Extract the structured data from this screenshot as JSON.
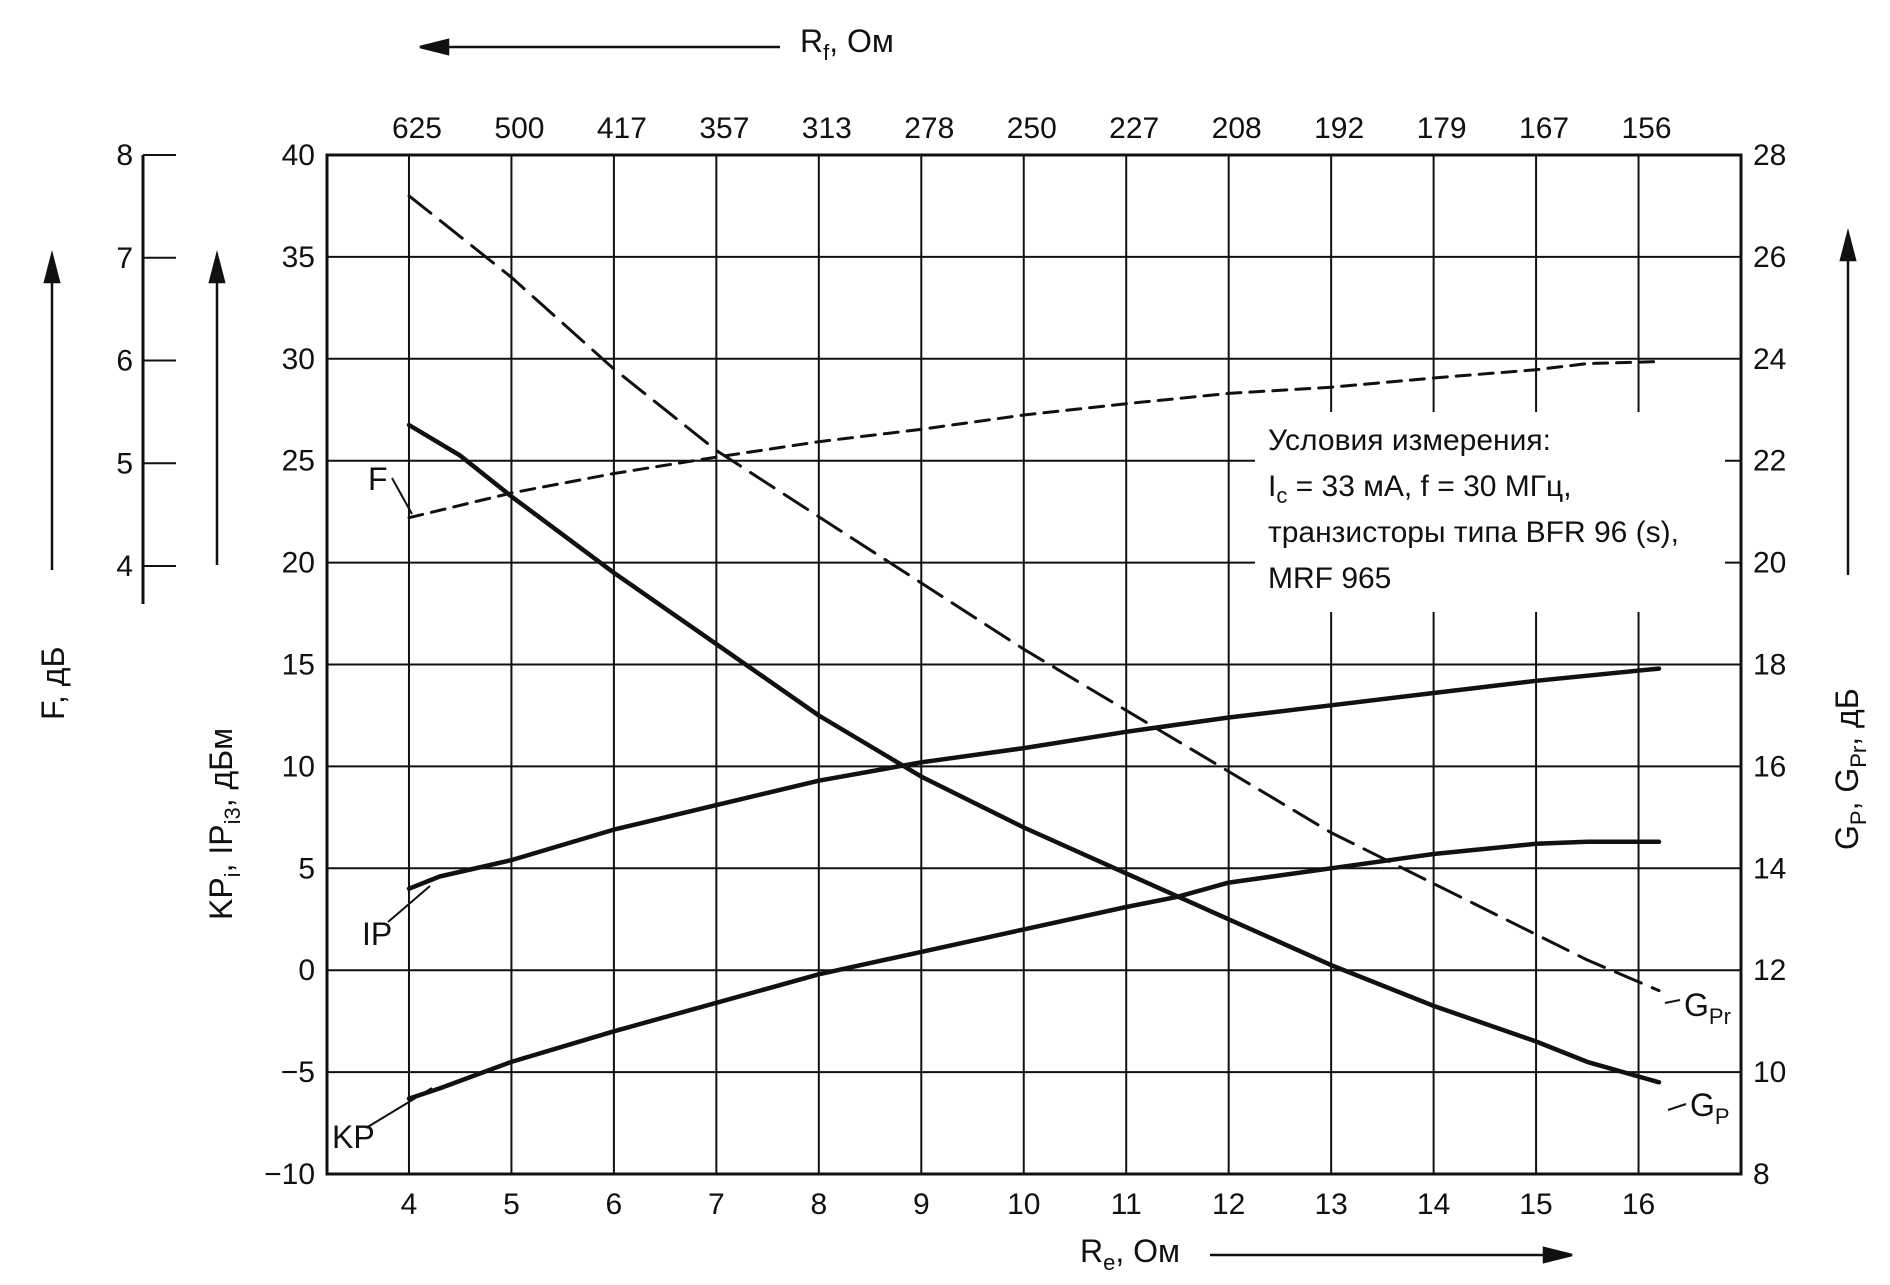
{
  "chart_data": {
    "type": "line",
    "x_axis": {
      "label": "R",
      "label_sub": "e",
      "label_unit": ", Ом",
      "range": [
        3.2,
        17.0
      ],
      "ticks": [
        4,
        5,
        6,
        7,
        8,
        9,
        10,
        11,
        12,
        13,
        14,
        15,
        16
      ]
    },
    "top_axis": {
      "label": "R",
      "label_sub": "f",
      "label_unit": ", Ом",
      "tick_labels": [
        "625",
        "500",
        "417",
        "357",
        "313",
        "278",
        "250",
        "227",
        "208",
        "192",
        "179",
        "167",
        "156"
      ]
    },
    "left_axis_inner": {
      "label": "KP",
      "label_sub1": "i",
      "label_mid": ", IP",
      "label_sub2": "i3",
      "label_unit": ", дБм",
      "range": [
        -10,
        40
      ],
      "ticks": [
        -10,
        -5,
        0,
        5,
        10,
        15,
        20,
        25,
        30,
        35,
        40
      ]
    },
    "left_axis_outer": {
      "label": "F, дБ",
      "range": [
        4,
        8
      ],
      "ticks": [
        4,
        5,
        6,
        7,
        8
      ]
    },
    "right_axis": {
      "label": "G",
      "label_sub1": "P",
      "label_mid": ", G",
      "label_sub2": "Pr",
      "label_unit": ", дБ",
      "range": [
        8,
        28
      ],
      "ticks": [
        8,
        10,
        12,
        14,
        16,
        18,
        20,
        22,
        24,
        26,
        28
      ]
    },
    "grid": true,
    "series": [
      {
        "name": "F",
        "label_sub": "",
        "axis": "F",
        "style": "dashed-short",
        "x": [
          4.0,
          5.0,
          6.0,
          7.0,
          8.0,
          9.0,
          10.0,
          11.0,
          12.0,
          13.0,
          14.0,
          15.0,
          15.5,
          16.2
        ],
        "y": [
          4.47,
          4.71,
          4.9,
          5.06,
          5.21,
          5.33,
          5.47,
          5.58,
          5.68,
          5.74,
          5.83,
          5.91,
          5.97,
          5.99
        ]
      },
      {
        "name": "IP",
        "label_sub": "",
        "axis": "left",
        "style": "solid",
        "x": [
          4.0,
          4.3,
          5.0,
          6.0,
          7.0,
          8.0,
          9.0,
          10.0,
          11.0,
          12.0,
          13.0,
          14.0,
          15.0,
          16.2
        ],
        "y": [
          4.0,
          4.6,
          5.4,
          6.9,
          8.1,
          9.3,
          10.2,
          10.9,
          11.7,
          12.4,
          13.0,
          13.6,
          14.2,
          14.8
        ]
      },
      {
        "name": "KP",
        "label_sub": "",
        "axis": "left",
        "style": "solid",
        "x": [
          4.0,
          4.3,
          5.0,
          6.0,
          7.0,
          8.0,
          9.0,
          10.0,
          11.0,
          11.5,
          12.0,
          13.0,
          14.0,
          15.0,
          15.5,
          16.2
        ],
        "y": [
          -6.3,
          -5.8,
          -4.5,
          -3.0,
          -1.6,
          -0.2,
          0.9,
          2.0,
          3.1,
          3.6,
          4.3,
          5.0,
          5.7,
          6.2,
          6.3,
          6.3
        ]
      },
      {
        "name": "G",
        "label_sub": "P",
        "axis": "right",
        "style": "solid",
        "x": [
          4.0,
          4.5,
          5.0,
          6.0,
          7.0,
          8.0,
          9.0,
          10.0,
          11.0,
          12.0,
          13.0,
          14.0,
          15.0,
          15.5,
          16.2
        ],
        "y": [
          22.7,
          22.1,
          21.3,
          19.8,
          18.4,
          17.0,
          15.8,
          14.8,
          13.9,
          13.0,
          12.1,
          11.3,
          10.6,
          10.2,
          9.8
        ]
      },
      {
        "name": "G",
        "label_sub": "Pr",
        "axis": "right",
        "style": "dashed-long",
        "x": [
          4.0,
          5.0,
          6.0,
          7.0,
          8.0,
          9.0,
          10.0,
          11.0,
          12.0,
          13.0,
          14.0,
          15.0,
          15.5,
          16.2
        ],
        "y": [
          27.2,
          25.6,
          23.8,
          22.2,
          20.9,
          19.6,
          18.3,
          17.1,
          15.9,
          14.7,
          13.7,
          12.7,
          12.2,
          11.6
        ]
      }
    ],
    "annotation": {
      "title": "Условия измерения:",
      "line2_prefix": "I",
      "line2_sub": "c",
      "line2_rest": " = 33 мА,   f = 30 МГц,",
      "line3": "транзисторы типа BFR 96 (s),",
      "line4": "MRF 965"
    }
  }
}
